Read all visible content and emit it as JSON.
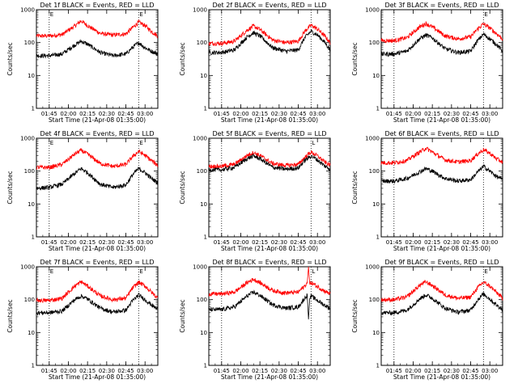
{
  "chart_data": [
    {
      "type": "line",
      "title": "Det 1f BLACK = Events, RED = LLD",
      "xlabel": "Start Time (21-Apr-08 01:35:00)",
      "ylabel": "Counts/sec",
      "yscale": "log",
      "ylim": [
        1,
        1000
      ],
      "xlim": [
        0,
        95
      ],
      "xticks": [
        10,
        25,
        40,
        55,
        70,
        85
      ],
      "xtick_labels": [
        "01:45",
        "02:00",
        "02:15",
        "02:30",
        "02:45",
        "03:00"
      ],
      "yticks": [
        1,
        10,
        100,
        1000
      ],
      "ytick_labels": [
        "1",
        "10",
        "100",
        "1000"
      ],
      "vlines": [
        10,
        80
      ],
      "markers": [
        "E",
        "E"
      ],
      "series": [
        {
          "color": "#ff0000",
          "x": [
            0,
            10,
            20,
            30,
            35,
            40,
            50,
            60,
            70,
            75,
            80,
            85,
            90,
            95
          ],
          "values": [
            160,
            160,
            175,
            320,
            460,
            330,
            190,
            170,
            185,
            280,
            420,
            330,
            220,
            160
          ]
        },
        {
          "color": "#000000",
          "x": [
            0,
            10,
            20,
            30,
            35,
            40,
            50,
            60,
            70,
            75,
            80,
            85,
            90,
            95
          ],
          "values": [
            40,
            40,
            45,
            85,
            110,
            90,
            50,
            40,
            45,
            70,
            100,
            70,
            55,
            45
          ]
        }
      ]
    },
    {
      "type": "line",
      "title": "Det 2f BLACK = Events, RED = LLD",
      "xlabel": "Start Time (21-Apr-08 01:35:00)",
      "ylabel": "Counts/sec",
      "yscale": "log",
      "ylim": [
        1,
        1000
      ],
      "xlim": [
        0,
        95
      ],
      "xticks": [
        10,
        25,
        40,
        55,
        70,
        85
      ],
      "xtick_labels": [
        "01:45",
        "02:00",
        "02:15",
        "02:30",
        "02:45",
        "03:00"
      ],
      "yticks": [
        1,
        10,
        100,
        1000
      ],
      "ytick_labels": [
        "1",
        "10",
        "100",
        "1000"
      ],
      "vlines": [
        10,
        80
      ],
      "markers": [
        "",
        ""
      ],
      "series": [
        {
          "color": "#ff0000",
          "x": [
            0,
            10,
            20,
            30,
            35,
            40,
            50,
            60,
            70,
            75,
            80,
            85,
            90,
            95
          ],
          "values": [
            95,
            95,
            110,
            240,
            320,
            250,
            120,
            100,
            110,
            220,
            340,
            260,
            170,
            100
          ]
        },
        {
          "color": "#000000",
          "x": [
            0,
            10,
            20,
            30,
            35,
            40,
            50,
            60,
            70,
            75,
            80,
            85,
            90,
            95
          ],
          "values": [
            50,
            50,
            60,
            150,
            200,
            160,
            70,
            55,
            60,
            140,
            220,
            170,
            110,
            60
          ]
        }
      ]
    },
    {
      "type": "line",
      "title": "Det 3f BLACK = Events, RED = LLD",
      "xlabel": "Start Time (21-Apr-08 01:35:00)",
      "ylabel": "Counts/sec",
      "yscale": "log",
      "ylim": [
        1,
        1000
      ],
      "xlim": [
        0,
        95
      ],
      "xticks": [
        10,
        25,
        40,
        55,
        70,
        85
      ],
      "xtick_labels": [
        "01:45",
        "02:00",
        "02:15",
        "02:30",
        "02:45",
        "03:00"
      ],
      "yticks": [
        1,
        10,
        100,
        1000
      ],
      "ytick_labels": [
        "1",
        "10",
        "100",
        "1000"
      ],
      "vlines": [
        10,
        80
      ],
      "markers": [
        "",
        "E"
      ],
      "series": [
        {
          "color": "#ff0000",
          "x": [
            0,
            10,
            20,
            30,
            35,
            40,
            50,
            60,
            70,
            75,
            80,
            85,
            90,
            95
          ],
          "values": [
            115,
            115,
            140,
            300,
            380,
            300,
            160,
            130,
            150,
            250,
            370,
            280,
            190,
            130
          ]
        },
        {
          "color": "#000000",
          "x": [
            0,
            10,
            20,
            30,
            35,
            40,
            50,
            60,
            70,
            75,
            80,
            85,
            90,
            95
          ],
          "values": [
            45,
            45,
            55,
            130,
            170,
            140,
            65,
            50,
            55,
            110,
            180,
            130,
            90,
            55
          ]
        }
      ]
    },
    {
      "type": "line",
      "title": "Det 4f BLACK = Events, RED = LLD",
      "xlabel": "Start Time (21-Apr-08 01:35:00)",
      "ylabel": "Counts/sec",
      "yscale": "log",
      "ylim": [
        1,
        1000
      ],
      "xlim": [
        0,
        95
      ],
      "xticks": [
        10,
        25,
        40,
        55,
        70,
        85
      ],
      "xtick_labels": [
        "01:45",
        "02:00",
        "02:15",
        "02:30",
        "02:45",
        "03:00"
      ],
      "yticks": [
        1,
        10,
        100,
        1000
      ],
      "ytick_labels": [
        "1",
        "10",
        "100",
        "1000"
      ],
      "vlines": [
        10,
        80
      ],
      "markers": [
        "E",
        "E"
      ],
      "series": [
        {
          "color": "#ff0000",
          "x": [
            0,
            10,
            20,
            30,
            35,
            40,
            50,
            60,
            70,
            75,
            80,
            85,
            90,
            95
          ],
          "values": [
            130,
            130,
            160,
            330,
            430,
            330,
            170,
            140,
            160,
            270,
            400,
            300,
            210,
            150
          ]
        },
        {
          "color": "#000000",
          "x": [
            0,
            10,
            20,
            30,
            35,
            40,
            50,
            60,
            70,
            75,
            80,
            85,
            90,
            95
          ],
          "values": [
            30,
            32,
            40,
            85,
            120,
            90,
            40,
            32,
            38,
            75,
            120,
            90,
            60,
            45
          ]
        }
      ]
    },
    {
      "type": "line",
      "title": "Det 5f BLACK = Events, RED = LLD",
      "xlabel": "Start Time (21-Apr-08 01:35:00)",
      "ylabel": "Counts/sec",
      "yscale": "log",
      "ylim": [
        1,
        1000
      ],
      "xlim": [
        0,
        95
      ],
      "xticks": [
        10,
        25,
        40,
        55,
        70,
        85
      ],
      "xtick_labels": [
        "01:45",
        "02:00",
        "02:15",
        "02:30",
        "02:45",
        "03:00"
      ],
      "yticks": [
        1,
        10,
        100,
        1000
      ],
      "ytick_labels": [
        "1",
        "10",
        "100",
        "1000"
      ],
      "vlines": [
        10,
        80
      ],
      "markers": [
        "",
        "L"
      ],
      "series": [
        {
          "color": "#ff0000",
          "x": [
            0,
            10,
            20,
            30,
            35,
            40,
            50,
            60,
            70,
            75,
            80,
            85,
            90,
            95
          ],
          "values": [
            140,
            140,
            160,
            300,
            370,
            300,
            170,
            150,
            160,
            260,
            380,
            290,
            200,
            150
          ]
        },
        {
          "color": "#000000",
          "x": [
            0,
            10,
            20,
            30,
            35,
            40,
            50,
            60,
            70,
            75,
            80,
            85,
            90,
            95
          ],
          "values": [
            110,
            110,
            130,
            240,
            290,
            240,
            130,
            115,
            125,
            210,
            290,
            220,
            150,
            115
          ]
        }
      ]
    },
    {
      "type": "line",
      "title": "Det 6f BLACK = Events, RED = LLD",
      "xlabel": "Start Time (21-Apr-08 01:35:00)",
      "ylabel": "Counts/sec",
      "yscale": "log",
      "ylim": [
        1,
        1000
      ],
      "xlim": [
        0,
        95
      ],
      "xticks": [
        10,
        25,
        40,
        55,
        70,
        85
      ],
      "xtick_labels": [
        "01:45",
        "02:00",
        "02:15",
        "02:30",
        "02:45",
        "03:00"
      ],
      "yticks": [
        1,
        10,
        100,
        1000
      ],
      "ytick_labels": [
        "1",
        "10",
        "100",
        "1000"
      ],
      "vlines": [
        10,
        80
      ],
      "markers": [
        "",
        ""
      ],
      "series": [
        {
          "color": "#ff0000",
          "x": [
            0,
            10,
            20,
            30,
            35,
            40,
            50,
            60,
            70,
            75,
            80,
            85,
            90,
            95
          ],
          "values": [
            180,
            180,
            210,
            380,
            500,
            380,
            220,
            190,
            210,
            320,
            450,
            350,
            240,
            190
          ]
        },
        {
          "color": "#000000",
          "x": [
            0,
            10,
            20,
            30,
            35,
            40,
            50,
            60,
            70,
            75,
            80,
            85,
            90,
            95
          ],
          "values": [
            50,
            50,
            60,
            95,
            120,
            100,
            60,
            50,
            55,
            90,
            140,
            100,
            70,
            55
          ]
        }
      ]
    },
    {
      "type": "line",
      "title": "Det 7f BLACK = Events, RED = LLD",
      "xlabel": "Start Time (21-Apr-08 01:35:00)",
      "ylabel": "Counts/sec",
      "yscale": "log",
      "ylim": [
        1,
        1000
      ],
      "xlim": [
        0,
        95
      ],
      "xticks": [
        10,
        25,
        40,
        55,
        70,
        85
      ],
      "xtick_labels": [
        "01:45",
        "02:00",
        "02:15",
        "02:30",
        "02:45",
        "03:00"
      ],
      "yticks": [
        1,
        10,
        100,
        1000
      ],
      "ytick_labels": [
        "1",
        "10",
        "100",
        "1000"
      ],
      "vlines": [
        10,
        80
      ],
      "markers": [
        "E",
        "E"
      ],
      "series": [
        {
          "color": "#ff0000",
          "x": [
            0,
            10,
            20,
            30,
            35,
            40,
            50,
            60,
            70,
            75,
            80,
            85,
            90,
            95
          ],
          "values": [
            95,
            95,
            110,
            260,
            350,
            260,
            130,
            100,
            110,
            220,
            340,
            260,
            170,
            110
          ]
        },
        {
          "color": "#000000",
          "x": [
            0,
            10,
            20,
            30,
            35,
            40,
            50,
            60,
            70,
            75,
            80,
            85,
            90,
            95
          ],
          "values": [
            40,
            40,
            45,
            100,
            130,
            105,
            55,
            42,
            48,
            90,
            140,
            100,
            70,
            50
          ]
        }
      ]
    },
    {
      "type": "line",
      "title": "Det 8f BLACK = Events, RED = LLD",
      "xlabel": "Start Time (21-Apr-08 01:35:00)",
      "ylabel": "Counts/sec",
      "yscale": "log",
      "ylim": [
        1,
        1000
      ],
      "xlim": [
        0,
        95
      ],
      "xticks": [
        10,
        25,
        40,
        55,
        70,
        85
      ],
      "xtick_labels": [
        "01:45",
        "02:00",
        "02:15",
        "02:30",
        "02:45",
        "03:00"
      ],
      "yticks": [
        1,
        10,
        100,
        1000
      ],
      "ytick_labels": [
        "1",
        "10",
        "100",
        "1000"
      ],
      "vlines": [
        10,
        80
      ],
      "markers": [
        "",
        "L"
      ],
      "series": [
        {
          "color": "#ff0000",
          "x": [
            0,
            10,
            20,
            30,
            35,
            40,
            50,
            60,
            70,
            75,
            77,
            78,
            79,
            80,
            85,
            90,
            95
          ],
          "values": [
            150,
            150,
            170,
            330,
            420,
            330,
            190,
            160,
            170,
            260,
            320,
            1000,
            300,
            330,
            250,
            190,
            150
          ]
        },
        {
          "color": "#000000",
          "x": [
            0,
            10,
            20,
            30,
            35,
            40,
            50,
            60,
            70,
            75,
            77,
            78,
            79,
            80,
            85,
            90,
            95
          ],
          "values": [
            50,
            50,
            60,
            130,
            170,
            135,
            70,
            55,
            60,
            110,
            140,
            25,
            110,
            130,
            95,
            70,
            55
          ]
        }
      ]
    },
    {
      "type": "line",
      "title": "Det 9f BLACK = Events, RED = LLD",
      "xlabel": "Start Time (21-Apr-08 01:35:00)",
      "ylabel": "Counts/sec",
      "yscale": "log",
      "ylim": [
        1,
        1000
      ],
      "xlim": [
        0,
        95
      ],
      "xticks": [
        10,
        25,
        40,
        55,
        70,
        85
      ],
      "xtick_labels": [
        "01:45",
        "02:00",
        "02:15",
        "02:30",
        "02:45",
        "03:00"
      ],
      "yticks": [
        1,
        10,
        100,
        1000
      ],
      "ytick_labels": [
        "1",
        "10",
        "100",
        "1000"
      ],
      "vlines": [
        10,
        80
      ],
      "markers": [
        "",
        "E"
      ],
      "series": [
        {
          "color": "#ff0000",
          "x": [
            0,
            10,
            20,
            30,
            35,
            40,
            50,
            60,
            70,
            75,
            80,
            85,
            90,
            95
          ],
          "values": [
            100,
            100,
            120,
            270,
            350,
            270,
            140,
            110,
            120,
            220,
            340,
            260,
            170,
            110
          ]
        },
        {
          "color": "#000000",
          "x": [
            0,
            10,
            20,
            30,
            35,
            40,
            50,
            60,
            70,
            75,
            80,
            85,
            90,
            95
          ],
          "values": [
            40,
            40,
            48,
            105,
            140,
            110,
            55,
            42,
            48,
            95,
            150,
            105,
            70,
            50
          ]
        }
      ]
    }
  ]
}
